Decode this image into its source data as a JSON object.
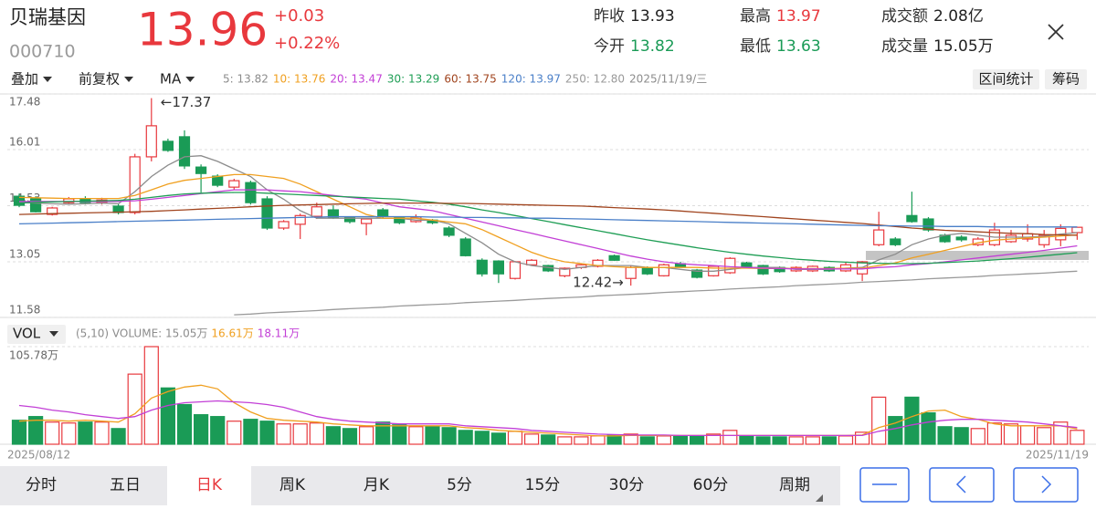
{
  "header": {
    "name": "贝瑞基因",
    "code": "000710",
    "price": "13.96",
    "change": "+0.03",
    "change_pct": "+0.22%",
    "stats": [
      {
        "label": "昨收",
        "value": "13.93",
        "color": "#222222"
      },
      {
        "label": "今开",
        "value": "13.82",
        "color": "#1a9b56"
      },
      {
        "label": "最高",
        "value": "13.97",
        "color": "#e8383d"
      },
      {
        "label": "最低",
        "value": "13.63",
        "color": "#1a9b56"
      },
      {
        "label": "成交额",
        "value": "2.08亿",
        "color": "#222222"
      },
      {
        "label": "成交量",
        "value": "15.05万",
        "color": "#222222"
      }
    ]
  },
  "toolbar": {
    "menus": [
      "叠加",
      "前复权",
      "MA"
    ],
    "date": "2025/11/19/三",
    "buttons": [
      "区间统计",
      "筹码"
    ],
    "vol_menu": "VOL"
  },
  "chart_data": [
    {
      "type": "candlestick",
      "up_color": "#e8383d",
      "down_color": "#1a9b56",
      "ylim": [
        11.58,
        17.48
      ],
      "yticks": [
        17.48,
        16.01,
        14.53,
        13.05,
        11.58
      ],
      "grid": true,
      "open": [
        14.78,
        14.71,
        14.3,
        14.61,
        14.71,
        14.61,
        14.52,
        14.35,
        15.82,
        16.23,
        16.35,
        15.55,
        15.31,
        15.02,
        15.14,
        14.71,
        13.94,
        14.04,
        14.25,
        14.42,
        14.23,
        14.06,
        14.42,
        14.23,
        14.11,
        14.15,
        13.94,
        13.65,
        13.09,
        13.07,
        12.61,
        12.97,
        12.95,
        12.68,
        12.9,
        12.93,
        13.21,
        12.61,
        12.9,
        12.68,
        13.0,
        12.83,
        12.68,
        12.76,
        13.02,
        12.95,
        12.9,
        12.81,
        12.81,
        12.9,
        12.81,
        12.73,
        13.5,
        13.65,
        14.27,
        14.18,
        13.75,
        13.7,
        13.5,
        13.5,
        13.58,
        13.65,
        13.5,
        13.63,
        13.82
      ],
      "high": [
        14.85,
        14.78,
        14.5,
        14.76,
        14.78,
        14.74,
        14.58,
        15.9,
        17.37,
        16.3,
        16.52,
        15.62,
        15.36,
        15.24,
        15.19,
        14.78,
        14.15,
        14.32,
        14.61,
        14.54,
        14.25,
        14.2,
        14.47,
        14.25,
        14.3,
        14.18,
        13.99,
        13.7,
        13.14,
        13.09,
        13.07,
        13.12,
        12.97,
        12.9,
        13.0,
        13.12,
        13.24,
        12.95,
        12.93,
        13.0,
        13.05,
        12.86,
        12.95,
        13.17,
        13.05,
        12.97,
        12.93,
        12.93,
        12.95,
        12.93,
        13.05,
        13.07,
        14.37,
        13.7,
        14.9,
        14.23,
        13.79,
        13.75,
        13.7,
        14.08,
        13.89,
        14.04,
        13.89,
        14.04,
        13.97
      ],
      "low": [
        14.49,
        14.35,
        14.27,
        14.56,
        14.56,
        14.56,
        14.3,
        14.3,
        15.7,
        15.95,
        15.5,
        14.88,
        15.02,
        14.95,
        14.56,
        13.89,
        13.89,
        13.65,
        14.18,
        14.18,
        14.06,
        13.75,
        14.2,
        14.04,
        14.08,
        14.04,
        13.7,
        13.19,
        12.66,
        12.49,
        12.58,
        12.95,
        12.78,
        12.64,
        12.86,
        12.9,
        13.07,
        12.42,
        12.7,
        12.66,
        12.9,
        12.61,
        12.66,
        12.73,
        12.9,
        12.7,
        12.76,
        12.78,
        12.78,
        12.78,
        12.78,
        12.54,
        13.46,
        13.46,
        14.08,
        13.84,
        13.55,
        13.58,
        13.46,
        13.46,
        13.55,
        13.58,
        13.42,
        13.46,
        13.63
      ],
      "close": [
        14.54,
        14.37,
        14.47,
        14.71,
        14.61,
        14.68,
        14.35,
        15.82,
        16.64,
        15.99,
        15.58,
        15.38,
        15.07,
        15.19,
        14.61,
        13.94,
        14.11,
        14.27,
        14.5,
        14.23,
        14.11,
        14.18,
        14.25,
        14.08,
        14.23,
        14.08,
        13.75,
        13.21,
        12.73,
        12.73,
        13.05,
        13.09,
        12.81,
        12.88,
        12.97,
        13.09,
        13.09,
        12.9,
        12.73,
        12.97,
        12.93,
        12.64,
        12.93,
        13.14,
        12.93,
        12.73,
        12.79,
        12.9,
        12.93,
        12.81,
        12.97,
        13.05,
        13.89,
        13.5,
        14.11,
        13.89,
        13.58,
        13.63,
        13.65,
        13.89,
        13.75,
        13.79,
        13.75,
        13.93,
        13.96
      ],
      "annotations": [
        {
          "value": 17.37,
          "label": "←17.37"
        },
        {
          "value": 12.42,
          "label": "12.42→"
        }
      ],
      "series": [
        {
          "name": "5: 13.82",
          "color": "#8c8c8c",
          "values": [
            14.62,
            14.6,
            14.58,
            14.57,
            14.58,
            14.6,
            14.58,
            14.9,
            15.3,
            15.6,
            15.82,
            15.85,
            15.7,
            15.5,
            15.3,
            14.95,
            14.7,
            14.4,
            14.2,
            14.2,
            14.2,
            14.2,
            14.2,
            14.2,
            14.15,
            14.15,
            14.05,
            13.8,
            13.55,
            13.25,
            13.05,
            12.95,
            12.9,
            12.85,
            12.9,
            12.95,
            12.95,
            12.95,
            12.9,
            12.9,
            12.85,
            12.8,
            12.8,
            12.85,
            12.9,
            12.9,
            12.9,
            12.85,
            12.85,
            12.85,
            12.88,
            12.9,
            13.1,
            13.25,
            13.5,
            13.65,
            13.75,
            13.8,
            13.75,
            13.7,
            13.7,
            13.7,
            13.72,
            13.78,
            13.82
          ]
        },
        {
          "name": "10: 13.76",
          "color": "#f0a020",
          "values": [
            14.75,
            14.74,
            14.73,
            14.72,
            14.72,
            14.72,
            14.72,
            14.8,
            14.95,
            15.1,
            15.2,
            15.25,
            15.3,
            15.35,
            15.35,
            15.3,
            15.25,
            15.1,
            14.9,
            14.7,
            14.5,
            14.3,
            14.2,
            14.2,
            14.2,
            14.15,
            14.1,
            14.05,
            13.9,
            13.7,
            13.5,
            13.3,
            13.15,
            13.05,
            13.0,
            12.95,
            12.92,
            12.9,
            12.9,
            12.9,
            12.9,
            12.9,
            12.88,
            12.88,
            12.88,
            12.87,
            12.87,
            12.87,
            12.87,
            12.87,
            12.88,
            12.88,
            12.95,
            13.02,
            13.15,
            13.25,
            13.35,
            13.45,
            13.55,
            13.62,
            13.65,
            13.68,
            13.7,
            13.73,
            13.76
          ]
        },
        {
          "name": "20: 13.47",
          "color": "#c23fd6",
          "values": [
            14.64,
            14.64,
            14.64,
            14.64,
            14.64,
            14.64,
            14.64,
            14.66,
            14.7,
            14.75,
            14.8,
            14.85,
            14.9,
            14.95,
            14.95,
            14.95,
            14.92,
            14.9,
            14.85,
            14.8,
            14.75,
            14.7,
            14.6,
            14.5,
            14.45,
            14.4,
            14.3,
            14.2,
            14.1,
            14.0,
            13.9,
            13.8,
            13.7,
            13.6,
            13.5,
            13.4,
            13.3,
            13.2,
            13.12,
            13.05,
            13.0,
            12.97,
            12.95,
            12.92,
            12.9,
            12.88,
            12.87,
            12.86,
            12.86,
            12.86,
            12.86,
            12.86,
            12.9,
            12.92,
            12.97,
            13.0,
            13.05,
            13.1,
            13.15,
            13.2,
            13.25,
            13.3,
            13.35,
            13.41,
            13.47
          ]
        },
        {
          "name": "30: 13.29",
          "color": "#1f9e55",
          "values": [
            14.6,
            14.62,
            14.63,
            14.64,
            14.65,
            14.66,
            14.67,
            14.7,
            14.75,
            14.8,
            14.84,
            14.86,
            14.87,
            14.88,
            14.88,
            14.86,
            14.84,
            14.82,
            14.8,
            14.78,
            14.76,
            14.74,
            14.72,
            14.7,
            14.66,
            14.62,
            14.57,
            14.5,
            14.42,
            14.35,
            14.27,
            14.19,
            14.11,
            14.03,
            13.95,
            13.87,
            13.79,
            13.71,
            13.63,
            13.56,
            13.49,
            13.42,
            13.36,
            13.3,
            13.25,
            13.2,
            13.16,
            13.12,
            13.09,
            13.06,
            13.04,
            13.02,
            13.01,
            13.0,
            13.0,
            13.01,
            13.03,
            13.05,
            13.07,
            13.1,
            13.13,
            13.17,
            13.21,
            13.25,
            13.29
          ]
        },
        {
          "name": "60: 13.75",
          "color": "#a0441e",
          "values": [
            14.3,
            14.31,
            14.32,
            14.33,
            14.34,
            14.35,
            14.36,
            14.37,
            14.38,
            14.4,
            14.42,
            14.44,
            14.46,
            14.48,
            14.5,
            14.52,
            14.54,
            14.55,
            14.56,
            14.57,
            14.58,
            14.59,
            14.6,
            14.6,
            14.6,
            14.6,
            14.59,
            14.59,
            14.58,
            14.57,
            14.56,
            14.55,
            14.54,
            14.53,
            14.52,
            14.5,
            14.48,
            14.46,
            14.44,
            14.42,
            14.39,
            14.36,
            14.33,
            14.3,
            14.27,
            14.24,
            14.21,
            14.18,
            14.15,
            14.12,
            14.09,
            14.06,
            14.02,
            13.98,
            13.94,
            13.91,
            13.88,
            13.86,
            13.84,
            13.82,
            13.8,
            13.79,
            13.77,
            13.76,
            13.75
          ]
        },
        {
          "name": "120: 13.97",
          "color": "#4a7fc8",
          "values": [
            14.05,
            14.06,
            14.07,
            14.08,
            14.09,
            14.1,
            14.11,
            14.12,
            14.13,
            14.14,
            14.15,
            14.16,
            14.17,
            14.18,
            14.19,
            14.2,
            14.21,
            14.22,
            14.23,
            14.24,
            14.24,
            14.24,
            14.24,
            14.24,
            14.24,
            14.23,
            14.23,
            14.22,
            14.22,
            14.21,
            14.21,
            14.2,
            14.2,
            14.19,
            14.18,
            14.17,
            14.16,
            14.15,
            14.14,
            14.13,
            14.12,
            14.11,
            14.1,
            14.09,
            14.08,
            14.07,
            14.06,
            14.05,
            14.04,
            14.03,
            14.02,
            14.01,
            14.0,
            14.0,
            13.99,
            13.99,
            13.98,
            13.98,
            13.98,
            13.97,
            13.97,
            13.97,
            13.97,
            13.97,
            13.97
          ]
        },
        {
          "name": "250: 12.80",
          "color": "#9a9a9a",
          "values": [
            null,
            null,
            null,
            null,
            null,
            null,
            null,
            null,
            null,
            null,
            null,
            null,
            null,
            11.65,
            11.67,
            11.7,
            11.72,
            11.74,
            11.76,
            11.79,
            11.81,
            11.83,
            11.85,
            11.88,
            11.9,
            11.92,
            11.94,
            11.97,
            11.99,
            12.01,
            12.03,
            12.06,
            12.08,
            12.1,
            12.12,
            12.15,
            12.17,
            12.19,
            12.21,
            12.24,
            12.26,
            12.28,
            12.3,
            12.33,
            12.35,
            12.37,
            12.39,
            12.42,
            12.44,
            12.46,
            12.48,
            12.51,
            12.53,
            12.55,
            12.57,
            12.6,
            12.62,
            12.64,
            12.66,
            12.69,
            12.71,
            12.73,
            12.75,
            12.78,
            12.8
          ]
        }
      ]
    },
    {
      "type": "bar",
      "name": "(5,10) VOLUME: 15.05万",
      "ylim": [
        0,
        105.78
      ],
      "yticks": [
        {
          "value": 105.78,
          "label": "105.78万"
        }
      ],
      "categories": [
        "2025/08/12",
        null,
        null,
        null,
        null,
        null,
        null,
        null,
        null,
        null,
        null,
        null,
        null,
        null,
        null,
        null,
        null,
        null,
        null,
        null,
        null,
        null,
        null,
        null,
        null,
        null,
        null,
        null,
        null,
        null,
        null,
        null,
        null,
        null,
        null,
        null,
        null,
        null,
        null,
        null,
        null,
        null,
        null,
        null,
        null,
        null,
        null,
        null,
        null,
        null,
        null,
        null,
        null,
        null,
        null,
        null,
        null,
        null,
        null,
        null,
        null,
        null,
        null,
        null,
        "2025/11/19"
      ],
      "values": [
        26,
        30,
        24,
        23,
        24,
        24,
        17,
        76,
        105.78,
        61,
        43,
        32,
        30,
        25,
        27,
        25,
        22,
        22,
        23,
        19,
        17,
        19,
        24,
        21,
        19,
        19,
        18,
        15,
        14,
        12,
        14,
        11,
        10,
        8,
        8,
        9,
        10,
        11,
        8,
        9,
        9,
        9,
        11,
        15,
        9,
        8,
        8,
        8,
        8,
        8,
        9,
        13,
        51,
        30,
        51,
        34,
        19,
        18,
        17,
        23,
        22,
        20,
        18,
        24,
        15.05
      ],
      "series": [
        {
          "name": "16.61万",
          "color": "#f0a020",
          "values": [
            25,
            26,
            26,
            25,
            26,
            25,
            24,
            33,
            50,
            57,
            62,
            64,
            60,
            45,
            35,
            28,
            26,
            25,
            24,
            22,
            21,
            20,
            20,
            20,
            20,
            20,
            20,
            18,
            17,
            15,
            14,
            13,
            12,
            11,
            10,
            9,
            9,
            9.5,
            9.5,
            9.5,
            9.5,
            9.5,
            9.5,
            9.5,
            9.5,
            9.5,
            9.5,
            9.5,
            9.5,
            9.5,
            9.5,
            10,
            18,
            23,
            30,
            36,
            37,
            30,
            27,
            22,
            20,
            20,
            20,
            20,
            16.61
          ]
        },
        {
          "name": "18.11万",
          "color": "#c23fd6",
          "values": [
            42,
            40,
            37,
            35,
            32,
            30,
            28,
            30,
            37,
            42,
            45,
            46,
            47,
            46,
            45,
            43,
            40,
            35,
            30,
            27,
            25,
            24,
            23,
            22,
            22,
            22,
            22,
            20,
            19,
            18,
            17,
            15,
            14,
            13,
            12,
            11,
            10.5,
            10,
            10,
            10,
            9.5,
            9.5,
            9.5,
            9.5,
            9.5,
            9.5,
            9.5,
            9.5,
            9.5,
            9.5,
            9.5,
            9.5,
            14,
            17,
            21,
            24,
            26,
            27,
            27,
            26,
            25,
            24,
            22,
            20,
            18.11
          ]
        }
      ]
    }
  ],
  "tabs": [
    {
      "label": "分时"
    },
    {
      "label": "五日"
    },
    {
      "label": "日K",
      "selected": true
    },
    {
      "label": "周K"
    },
    {
      "label": "月K"
    },
    {
      "label": "5分"
    },
    {
      "label": "15分"
    },
    {
      "label": "30分"
    },
    {
      "label": "60分"
    },
    {
      "label": "周期"
    }
  ]
}
